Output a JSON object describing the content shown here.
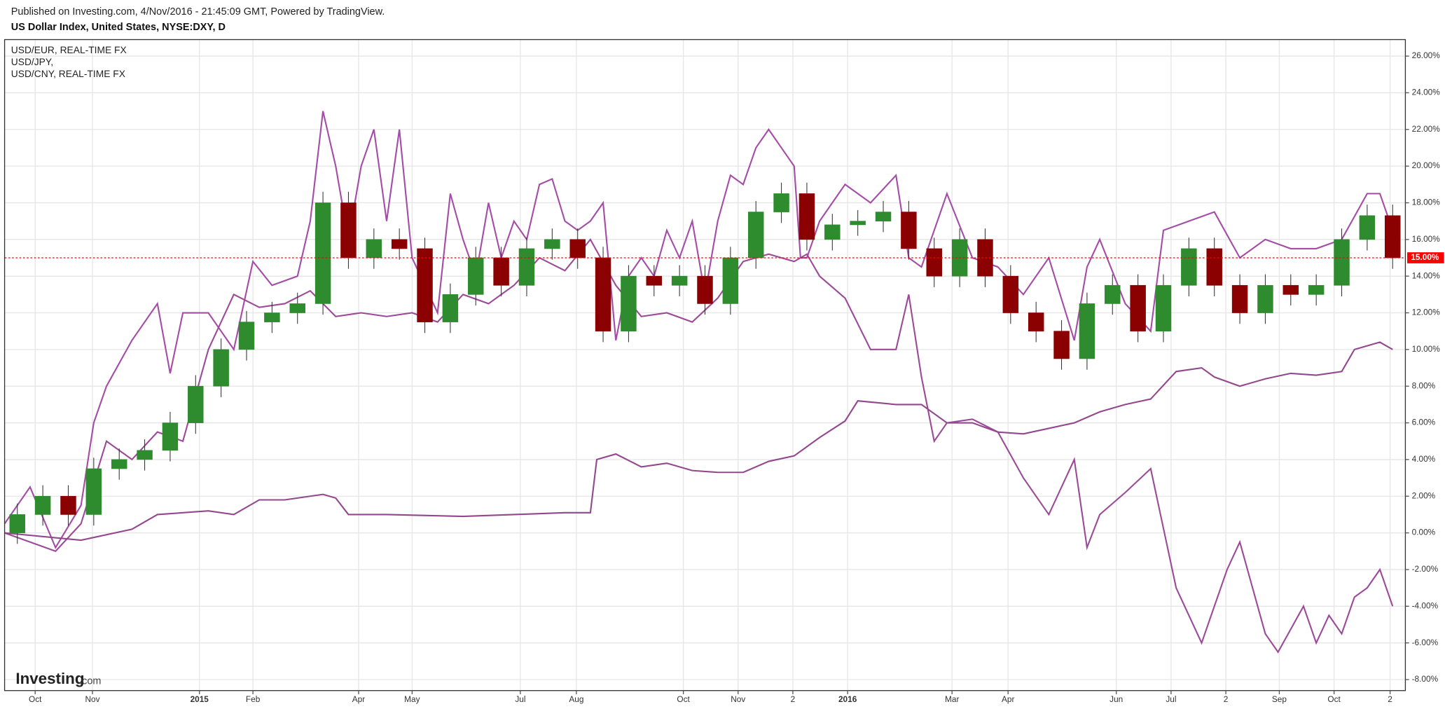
{
  "header": {
    "published": "Published on Investing.com, 4/Nov/2016 - 21:45:09 GMT, Powered by TradingView."
  },
  "logo": {
    "brand": "Investing",
    "suffix": ".com"
  },
  "chart_data": {
    "type": "candlestick",
    "title": "US Dollar Index, United States, NYSE:DXY, D",
    "xlim": [
      0,
      110
    ],
    "xticks": [
      {
        "value": 2.4,
        "label": "Oct"
      },
      {
        "value": 6.9,
        "label": "Nov"
      },
      {
        "value": 15.3,
        "label": "2015"
      },
      {
        "value": 19.5,
        "label": "Feb"
      },
      {
        "value": 27.8,
        "label": "Apr"
      },
      {
        "value": 32.0,
        "label": "May"
      },
      {
        "value": 40.5,
        "label": "Jul"
      },
      {
        "value": 44.9,
        "label": "Aug"
      },
      {
        "value": 53.3,
        "label": "Oct"
      },
      {
        "value": 57.6,
        "label": "Nov"
      },
      {
        "value": 61.9,
        "label": "2"
      },
      {
        "value": 66.2,
        "label": "2016"
      },
      {
        "value": 74.4,
        "label": "Mar"
      },
      {
        "value": 78.8,
        "label": "Apr"
      },
      {
        "value": 87.3,
        "label": "Jun"
      },
      {
        "value": 91.6,
        "label": "Jul"
      },
      {
        "value": 95.9,
        "label": "2"
      },
      {
        "value": 100.1,
        "label": "Sep"
      },
      {
        "value": 104.4,
        "label": "Oct"
      },
      {
        "value": 108.8,
        "label": "2"
      }
    ],
    "ylim": [
      -8.6,
      26.9
    ],
    "yticks": [
      {
        "value": -8,
        "label": "-8.00%"
      },
      {
        "value": -6,
        "label": "-6.00%"
      },
      {
        "value": -4,
        "label": "-4.00%"
      },
      {
        "value": -2,
        "label": "-2.00%"
      },
      {
        "value": 0,
        "label": "0.00%"
      },
      {
        "value": 2,
        "label": "2.00%"
      },
      {
        "value": 4,
        "label": "4.00%"
      },
      {
        "value": 6,
        "label": "6.00%"
      },
      {
        "value": 8,
        "label": "8.00%"
      },
      {
        "value": 10,
        "label": "10.00%"
      },
      {
        "value": 12,
        "label": "12.00%"
      },
      {
        "value": 14,
        "label": "14.00%"
      },
      {
        "value": 16,
        "label": "16.00%"
      },
      {
        "value": 18,
        "label": "18.00%"
      },
      {
        "value": 20,
        "label": "20.00%"
      },
      {
        "value": 22,
        "label": "22.00%"
      },
      {
        "value": 24,
        "label": "24.00%"
      },
      {
        "value": 26,
        "label": "26.00%"
      }
    ],
    "grid": true,
    "price_line": {
      "value": 15,
      "label": "15.00%",
      "color": "#ff0000"
    },
    "candles": {
      "up_color": "#2e8b2e",
      "down_color": "#8b0000",
      "x": [
        1,
        3,
        5,
        7,
        9,
        11,
        13,
        15,
        17,
        19,
        21,
        23,
        25,
        27,
        29,
        31,
        33,
        35,
        37,
        39,
        41,
        43,
        45,
        47,
        49,
        51,
        53,
        55,
        57,
        59,
        61,
        63,
        65,
        67,
        69,
        71,
        73,
        75,
        77,
        79,
        81,
        83,
        85,
        87,
        89,
        91,
        93,
        95,
        97,
        99,
        101,
        103,
        105,
        107,
        109
      ],
      "open": [
        0,
        1,
        2,
        1,
        3.5,
        4,
        4.5,
        6,
        8,
        10,
        11.5,
        12,
        12.5,
        18,
        15,
        16,
        15.5,
        11.5,
        13,
        15,
        13.5,
        15.5,
        16,
        15,
        11,
        14,
        13.5,
        14,
        12.5,
        15,
        17.5,
        18.5,
        16,
        16.8,
        17,
        17.5,
        15.5,
        14,
        16,
        14,
        12,
        11,
        9.5,
        12.5,
        13.5,
        11,
        13.5,
        15.5,
        13.5,
        12,
        13.5,
        13,
        13.5,
        16,
        17.3
      ],
      "high": [
        1.6,
        2.6,
        2.6,
        4.1,
        4.6,
        5.1,
        6.6,
        8.6,
        10.6,
        12.1,
        12.6,
        13.1,
        18.6,
        18.6,
        16.6,
        16.6,
        16.1,
        13.6,
        15.6,
        15.6,
        16.1,
        16.6,
        16.6,
        15.6,
        14.6,
        14.6,
        14.6,
        14.6,
        15.6,
        18.1,
        19.1,
        19.1,
        17.4,
        17.6,
        18.1,
        18.1,
        16.1,
        16.6,
        16.6,
        14.6,
        12.6,
        11.6,
        13.1,
        14.1,
        14.1,
        14.1,
        16.1,
        16.1,
        14.1,
        14.1,
        14.1,
        14.1,
        16.6,
        17.9,
        17.9
      ],
      "low": [
        -0.6,
        0.4,
        0.4,
        0.4,
        2.9,
        3.4,
        3.9,
        5.4,
        7.4,
        9.4,
        10.9,
        11.4,
        11.9,
        14.4,
        14.4,
        14.9,
        10.9,
        10.9,
        12.4,
        12.9,
        12.9,
        14.9,
        14.4,
        10.4,
        10.4,
        12.9,
        12.9,
        11.9,
        11.9,
        14.4,
        16.9,
        15.4,
        15.4,
        16.2,
        16.4,
        14.9,
        13.4,
        13.4,
        13.4,
        11.4,
        10.4,
        8.9,
        8.9,
        11.9,
        10.4,
        10.4,
        12.9,
        12.9,
        11.4,
        11.4,
        12.4,
        12.4,
        12.9,
        15.4,
        14.4
      ],
      "close": [
        1,
        2,
        1,
        3.5,
        4,
        4.5,
        6,
        8,
        10,
        11.5,
        12,
        12.5,
        18,
        15,
        16,
        15.5,
        11.5,
        13,
        15,
        13.5,
        15.5,
        16,
        15,
        11,
        14,
        13.5,
        14,
        12.5,
        15,
        17.5,
        18.5,
        16,
        16.8,
        17,
        17.5,
        15.5,
        14,
        16,
        14,
        12,
        11,
        9.5,
        12.5,
        13.5,
        11,
        13.5,
        15.5,
        13.5,
        12,
        13.5,
        13,
        13.5,
        16,
        17.3,
        15
      ]
    },
    "series": [
      {
        "name": "USD/EUR, REAL-TIME FX",
        "color": "#a44ca6",
        "x": [
          0,
          2,
          4,
          6,
          7,
          8,
          10,
          12,
          13,
          14,
          16,
          18,
          19.5,
          21,
          23,
          24,
          25,
          26,
          27,
          28,
          29,
          30,
          31,
          32,
          34,
          35,
          36,
          37,
          38,
          39,
          40,
          41,
          42,
          43,
          44,
          45,
          46,
          47,
          48,
          49,
          50,
          51,
          52,
          53,
          54,
          55,
          56,
          57,
          58,
          59,
          60,
          61,
          62,
          62.5,
          63,
          64,
          66,
          68,
          70,
          71,
          72,
          74,
          76,
          78,
          80,
          82,
          84,
          85,
          86,
          88,
          90,
          91,
          93,
          95,
          97,
          99,
          101,
          103,
          105,
          107,
          108,
          109
        ],
        "values": [
          0.5,
          2.5,
          -0.8,
          1.5,
          6,
          8,
          10.5,
          12.5,
          8.7,
          12,
          12,
          10,
          14.8,
          13.5,
          14,
          17,
          23,
          20,
          16,
          20,
          22,
          17,
          22,
          15,
          12,
          18.5,
          16,
          14,
          18,
          15,
          17,
          16,
          19,
          19.3,
          17,
          16.5,
          17,
          18,
          10.5,
          14,
          15,
          14,
          16.5,
          15,
          17,
          13,
          17,
          19.5,
          19,
          21,
          22,
          21,
          20,
          15,
          15,
          17,
          19,
          18,
          19.5,
          15,
          14.5,
          18.5,
          15,
          14.5,
          13,
          15,
          10.5,
          14.5,
          16,
          12.5,
          11,
          16.5,
          17,
          17.5,
          15,
          16,
          15.5,
          15.5,
          16,
          18.5,
          18.5,
          16.5
        ]
      },
      {
        "name": "USD/JPY,",
        "color": "#9c4a98",
        "x": [
          0,
          4,
          6,
          8,
          10,
          12,
          14,
          16,
          18,
          20,
          22,
          24,
          26,
          28,
          30,
          32,
          34,
          36,
          38,
          40,
          42,
          44,
          46,
          48,
          50,
          52,
          54,
          56,
          58,
          60,
          62,
          63,
          64,
          66,
          68,
          70,
          71,
          72,
          73,
          74,
          76,
          78,
          80,
          82,
          84,
          85,
          86,
          88,
          90,
          92,
          94,
          96,
          97,
          98,
          99,
          100,
          102,
          103,
          104,
          105,
          106,
          107,
          108,
          109
        ],
        "values": [
          0,
          -1,
          0.5,
          5,
          4,
          5.5,
          5,
          10,
          13,
          12.3,
          12.5,
          13.2,
          11.8,
          12,
          11.8,
          12,
          11.5,
          13,
          12.5,
          13.5,
          15,
          14.3,
          16,
          13.5,
          11.8,
          12.0,
          11.5,
          12.8,
          14.8,
          15.2,
          14.8,
          15.2,
          14,
          12.8,
          10,
          10,
          13,
          8.5,
          5,
          6,
          6.2,
          5.5,
          3,
          1,
          4,
          -0.8,
          1,
          2.2,
          3.5,
          -3,
          -6,
          -2,
          -0.5,
          -3,
          -5.5,
          -6.5,
          -4,
          -6,
          -4.5,
          -5.5,
          -3.5,
          -3,
          -2,
          -4
        ]
      },
      {
        "name": "USD/CNY, REAL-TIME FX",
        "color": "#93488e",
        "x": [
          0,
          6,
          10,
          12,
          16,
          18,
          20,
          22,
          25,
          26,
          27,
          30,
          36,
          40,
          44,
          46,
          46.5,
          48,
          50,
          52,
          54,
          56,
          58,
          60,
          62,
          64,
          66,
          67,
          70,
          72,
          74,
          76,
          78,
          80,
          82,
          84,
          86,
          88,
          90,
          92,
          94,
          95,
          97,
          99,
          101,
          103,
          105,
          106,
          108,
          109
        ],
        "values": [
          0,
          -0.4,
          0.2,
          1.0,
          1.2,
          1.0,
          1.8,
          1.8,
          2.1,
          1.9,
          1.0,
          1.0,
          0.9,
          1.0,
          1.1,
          1.1,
          4.0,
          4.3,
          3.6,
          3.8,
          3.4,
          3.3,
          3.3,
          3.9,
          4.2,
          5.2,
          6.1,
          7.2,
          7.0,
          7.0,
          6.0,
          6.0,
          5.5,
          5.4,
          5.7,
          6.0,
          6.6,
          7.0,
          7.3,
          8.8,
          9.0,
          8.5,
          8.0,
          8.4,
          8.7,
          8.6,
          8.8,
          10.0,
          10.4,
          10.0
        ]
      }
    ]
  }
}
